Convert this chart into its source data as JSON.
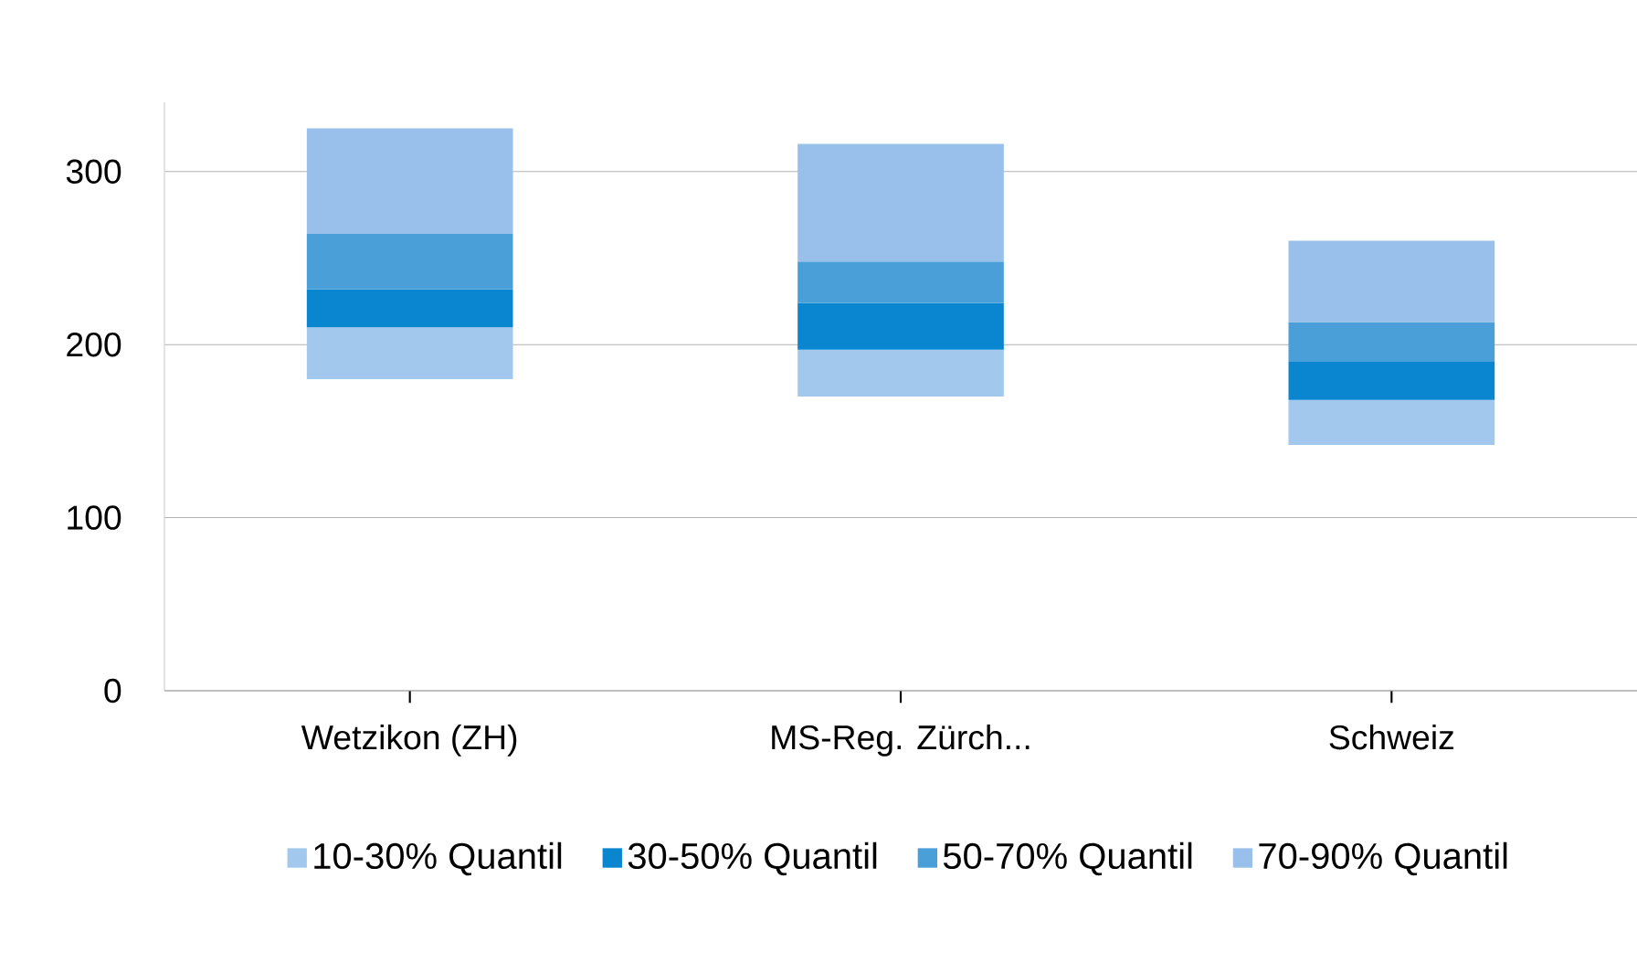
{
  "chart_data": {
    "type": "bar",
    "categories": [
      "Wetzikon (ZH)",
      "MS-Reg. Zürch...",
      "Schweiz"
    ],
    "series": [
      {
        "name": "10-30% Quantil",
        "color": "#a2c8ee",
        "base": [
          180,
          170,
          142
        ],
        "values": [
          30,
          27,
          26
        ]
      },
      {
        "name": "30-50% Quantil",
        "color": "#0a86d0",
        "base": [
          210,
          197,
          168
        ],
        "values": [
          22,
          27,
          22
        ]
      },
      {
        "name": "50-70% Quantil",
        "color": "#4a9fd8",
        "base": [
          232,
          224,
          190
        ],
        "values": [
          32,
          24,
          23
        ]
      },
      {
        "name": "70-90% Quantil",
        "color": "#98c0ea",
        "base": [
          264,
          248,
          213
        ],
        "values": [
          61,
          68,
          47
        ]
      }
    ],
    "ylim": [
      0,
      340
    ],
    "yticks": [
      0,
      100,
      200,
      300
    ],
    "grid": "y",
    "legend": "bottom"
  }
}
